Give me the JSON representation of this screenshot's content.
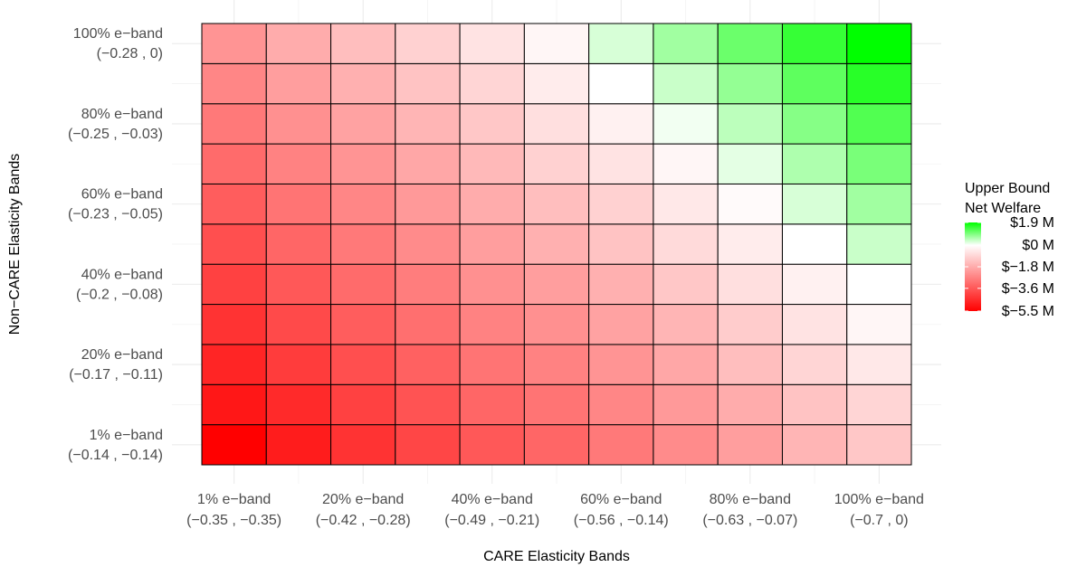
{
  "chart_data": {
    "type": "heatmap",
    "title": "",
    "xlabel": "CARE Elasticity Bands",
    "ylabel": "Non−CARE Elasticity Bands",
    "x_tick_labels": [
      {
        "band": "1% e−band",
        "range": "(−0.35 , −0.35)"
      },
      {
        "band": "20% e−band",
        "range": "(−0.42 , −0.28)"
      },
      {
        "band": "40% e−band",
        "range": "(−0.49 , −0.21)"
      },
      {
        "band": "60% e−band",
        "range": "(−0.56 , −0.14)"
      },
      {
        "band": "80% e−band",
        "range": "(−0.63 , −0.07)"
      },
      {
        "band": "100% e−band",
        "range": "(−0.7 , 0)"
      }
    ],
    "y_tick_labels": [
      {
        "band": "1% e−band",
        "range": "(−0.14 , −0.14)"
      },
      {
        "band": "20% e−band",
        "range": "(−0.17 , −0.11)"
      },
      {
        "band": "40% e−band",
        "range": "(−0.2 , −0.08)"
      },
      {
        "band": "60% e−band",
        "range": "(−0.23 , −0.05)"
      },
      {
        "band": "80% e−band",
        "range": "(−0.25 , −0.03)"
      },
      {
        "band": "100% e−band",
        "range": "(−0.28 , 0)"
      }
    ],
    "n_cols": 11,
    "n_rows": 11,
    "x_tick_cols": [
      0,
      2,
      4,
      6,
      8,
      10
    ],
    "y_tick_rows": [
      0,
      2,
      4,
      6,
      8,
      10
    ],
    "values_unit": "million dollars",
    "values_note": "rows ordered bottom (1% e-band) to top (100% e-band); columns left (1%) to right (100%)",
    "values": [
      [
        -5.5,
        -4.9,
        -4.4,
        -4.0,
        -3.6,
        -3.3,
        -2.9,
        -2.5,
        -2.1,
        -1.6,
        -1.2
      ],
      [
        -5.0,
        -4.6,
        -4.1,
        -3.7,
        -3.3,
        -3.0,
        -2.6,
        -2.2,
        -1.8,
        -1.3,
        -0.9
      ],
      [
        -4.7,
        -4.2,
        -3.8,
        -3.4,
        -3.0,
        -2.7,
        -2.3,
        -1.9,
        -1.4,
        -0.9,
        -0.5
      ],
      [
        -4.4,
        -3.9,
        -3.5,
        -3.1,
        -2.7,
        -2.4,
        -2.0,
        -1.6,
        -1.1,
        -0.6,
        -0.2
      ],
      [
        -4.1,
        -3.6,
        -3.2,
        -2.8,
        -2.4,
        -2.1,
        -1.7,
        -1.2,
        -0.7,
        -0.3,
        0.0
      ],
      [
        -3.8,
        -3.3,
        -2.9,
        -2.5,
        -2.1,
        -1.7,
        -1.3,
        -0.8,
        -0.4,
        0.0,
        0.4
      ],
      [
        -3.5,
        -3.0,
        -2.6,
        -2.2,
        -1.8,
        -1.4,
        -1.0,
        -0.5,
        -0.1,
        0.3,
        0.7
      ],
      [
        -3.2,
        -2.7,
        -2.3,
        -1.9,
        -1.5,
        -1.0,
        -0.6,
        -0.2,
        0.2,
        0.6,
        1.0
      ],
      [
        -2.9,
        -2.4,
        -2.0,
        -1.6,
        -1.2,
        -0.7,
        -0.3,
        0.1,
        0.5,
        0.9,
        1.3
      ],
      [
        -2.6,
        -2.1,
        -1.7,
        -1.3,
        -0.9,
        -0.4,
        0.0,
        0.4,
        0.8,
        1.2,
        1.6
      ],
      [
        -2.3,
        -1.8,
        -1.4,
        -1.0,
        -0.6,
        -0.2,
        0.3,
        0.7,
        1.1,
        1.5,
        1.9
      ]
    ],
    "color_scale": {
      "min": -5.5,
      "mid": 0,
      "max": 1.9,
      "low_color": "#ff0000",
      "mid_color": "#ffffff",
      "high_color": "#00ff00"
    },
    "legend": {
      "title_line1": "Upper Bound",
      "title_line2": "Net Welfare",
      "position": "right",
      "breaks": [
        1.9,
        0,
        -1.8,
        -3.6,
        -5.5
      ],
      "labels": [
        "$1.9 M",
        "$0 M",
        "$−1.8 M",
        "$−3.6 M",
        "$−5.5 M"
      ]
    },
    "grid": true
  }
}
